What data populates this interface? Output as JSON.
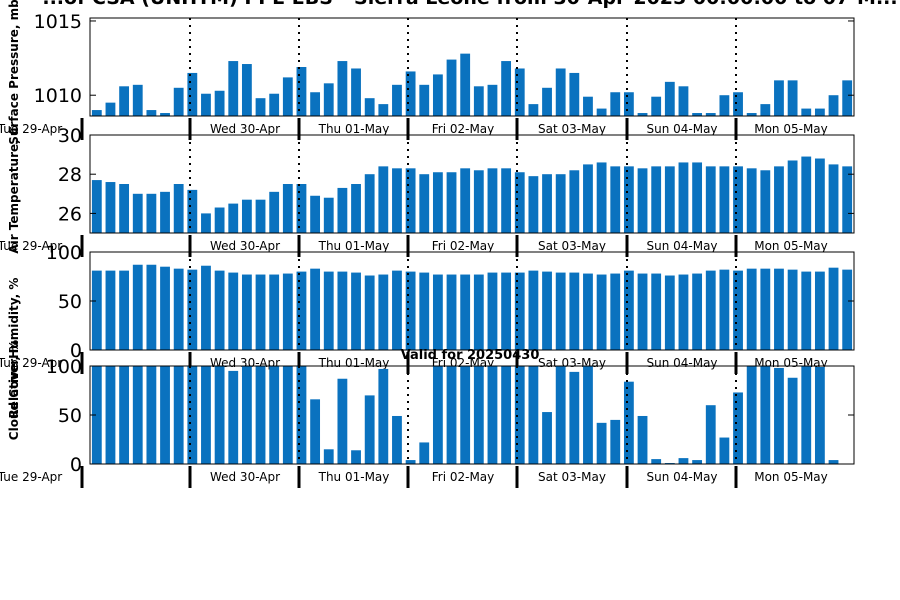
{
  "title": "...of CSA (UNHTM) PPE EBS - Sierra Leone from 30-Apr-2025 00:00:00 to 07-M...",
  "colors": {
    "bar": "#0a72bf",
    "axis": "#000000"
  },
  "x_tick_labels": [
    "Tue 29-Apr",
    "Wed 30-Apr",
    "Thu 01-May",
    "Fri 02-May",
    "Sat 03-May",
    "Sun 04-May",
    "Mon 05-May"
  ],
  "chart_data": [
    {
      "type": "bar",
      "ylabel": "Surface Pressure, mb",
      "ylim": [
        1008.6,
        1015.2
      ],
      "yticks": [
        1010,
        1015
      ],
      "ytick_labels": [
        "1010",
        "1015"
      ],
      "grid": false,
      "values": [
        1009.0,
        1009.5,
        1010.6,
        1010.7,
        1009.0,
        1008.8,
        1010.5,
        1011.5,
        1010.1,
        1010.3,
        1012.3,
        1012.1,
        1009.8,
        1010.1,
        1011.2,
        1011.9,
        1010.2,
        1010.8,
        1012.3,
        1011.8,
        1009.8,
        1009.4,
        1010.7,
        1011.6,
        1010.7,
        1011.4,
        1012.4,
        1012.8,
        1010.6,
        1010.7,
        1012.3,
        1011.8,
        1009.4,
        1010.5,
        1011.8,
        1011.5,
        1009.9,
        1009.1,
        1010.2,
        1010.2,
        1008.8,
        1009.9,
        1010.9,
        1010.6,
        1008.8,
        1008.8,
        1010.0,
        1010.2,
        1008.8,
        1009.4,
        1011.0,
        1011.0,
        1009.1,
        1009.1,
        1010.0,
        1011.0
      ]
    },
    {
      "type": "bar",
      "ylabel": "Air Temperature, C",
      "ylim": [
        25.0,
        30.0
      ],
      "yticks": [
        26,
        28,
        30
      ],
      "ytick_labels": [
        "26",
        "28",
        "30"
      ],
      "grid": false,
      "values": [
        27.7,
        27.6,
        27.5,
        27.0,
        27.0,
        27.1,
        27.5,
        27.2,
        26.0,
        26.3,
        26.5,
        26.7,
        26.7,
        27.1,
        27.5,
        27.5,
        26.9,
        26.8,
        27.3,
        27.5,
        28.0,
        28.4,
        28.3,
        28.3,
        28.0,
        28.1,
        28.1,
        28.3,
        28.2,
        28.3,
        28.3,
        28.1,
        27.9,
        28.0,
        28.0,
        28.2,
        28.5,
        28.6,
        28.4,
        28.4,
        28.3,
        28.4,
        28.4,
        28.6,
        28.6,
        28.4,
        28.4,
        28.4,
        28.3,
        28.2,
        28.4,
        28.7,
        28.9,
        28.8,
        28.5,
        28.4
      ]
    },
    {
      "type": "bar",
      "ylabel": "Relative Humidity, %",
      "ylim": [
        0,
        100
      ],
      "yticks": [
        0,
        50,
        100
      ],
      "ytick_labels": [
        "0",
        "50",
        "100"
      ],
      "grid": false,
      "values": [
        81,
        81,
        81,
        87,
        87,
        85,
        83,
        82,
        86,
        81,
        79,
        77,
        77,
        77,
        78,
        80,
        83,
        80,
        80,
        79,
        76,
        77,
        81,
        80,
        79,
        77,
        77,
        77,
        77,
        79,
        79,
        79,
        81,
        80,
        79,
        79,
        78,
        77,
        78,
        81,
        78,
        78,
        76,
        77,
        78,
        81,
        82,
        81,
        83,
        83,
        83,
        82,
        80,
        80,
        84,
        82
      ]
    },
    {
      "type": "bar",
      "title": "Valid for 20250430",
      "ylabel": "Cloud Cover, %",
      "ylim": [
        0,
        100
      ],
      "yticks": [
        0,
        50,
        100
      ],
      "ytick_labels": [
        "0",
        "50",
        "100"
      ],
      "grid": false,
      "values": [
        100,
        100,
        100,
        100,
        100,
        100,
        100,
        100,
        100,
        100,
        95,
        100,
        100,
        100,
        100,
        100,
        66,
        15,
        87,
        14,
        70,
        97,
        49,
        4,
        22,
        100,
        100,
        100,
        100,
        100,
        100,
        100,
        100,
        53,
        100,
        94,
        100,
        42,
        45,
        84,
        49,
        5,
        1,
        6,
        4,
        60,
        27,
        73,
        100,
        100,
        98,
        88,
        100,
        99,
        4,
        0
      ]
    }
  ]
}
